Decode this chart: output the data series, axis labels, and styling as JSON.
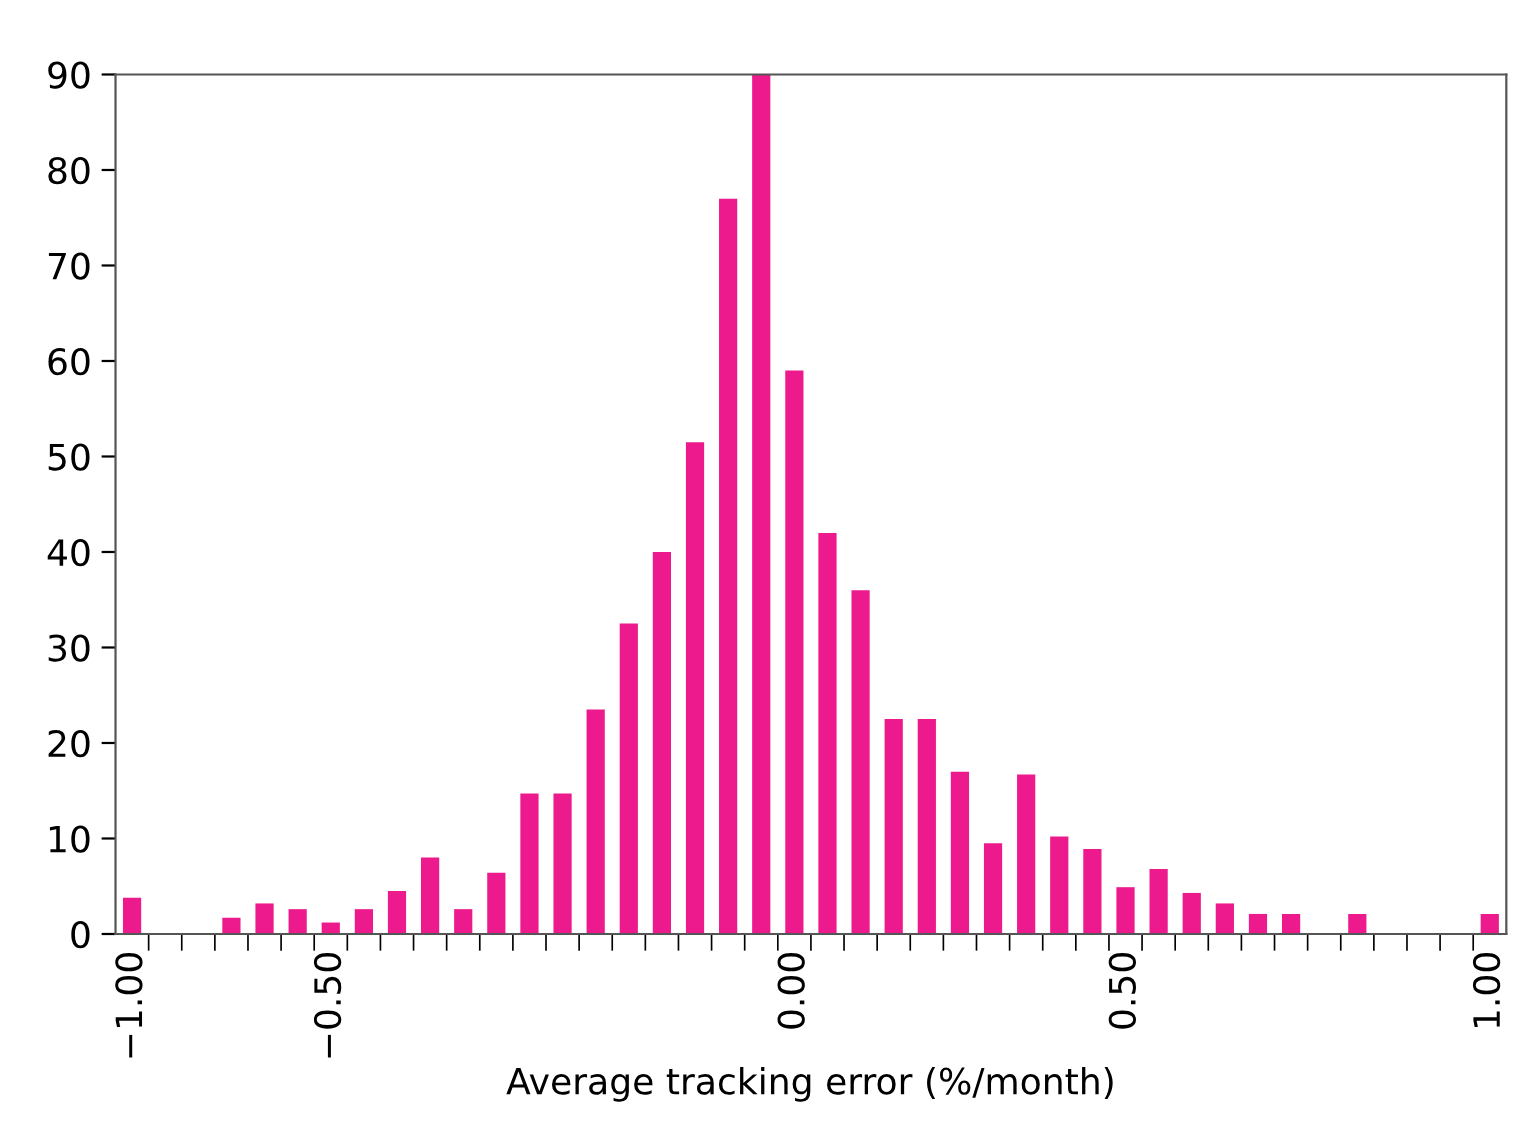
{
  "chart_data": {
    "type": "bar",
    "xlabel": "Average tracking error (%/month)",
    "categories": [
      "−1.00",
      null,
      null,
      null,
      null,
      null,
      "−0.50",
      null,
      null,
      null,
      null,
      null,
      null,
      null,
      null,
      null,
      null,
      null,
      null,
      null,
      "0.00",
      null,
      null,
      null,
      null,
      null,
      null,
      null,
      null,
      null,
      "0.50",
      null,
      null,
      null,
      null,
      null,
      null,
      null,
      null,
      null,
      null,
      "1.00"
    ],
    "values": [
      3.8,
      0,
      0,
      1.7,
      3.2,
      2.6,
      1.2,
      2.6,
      4.5,
      8.0,
      2.6,
      6.4,
      14.7,
      14.7,
      23.5,
      32.5,
      40,
      51.5,
      77,
      90,
      59,
      42,
      36,
      22.5,
      22.5,
      17,
      9.5,
      16.7,
      10.2,
      8.9,
      4.9,
      6.8,
      4.3,
      3.2,
      2.1,
      2.1,
      0,
      2.1,
      0,
      0,
      0,
      2.1
    ],
    "color": "#ec1a8c",
    "ylim": [
      0,
      90
    ],
    "yticks": [
      0,
      10,
      20,
      30,
      40,
      50,
      60,
      70,
      80,
      90
    ],
    "grid": false,
    "legend": false
  }
}
